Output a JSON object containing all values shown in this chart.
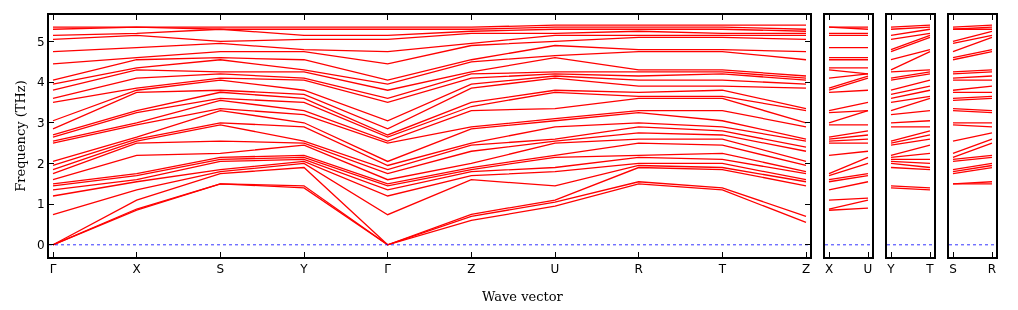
{
  "chart_data": [
    {
      "type": "line",
      "ylabel": "Frequency (THz)",
      "xlabel": "Wave vector",
      "color": "#ff0000",
      "marker": "none",
      "line_style": "solid",
      "categories": [
        "Γ",
        "X",
        "S",
        "Y",
        "Γ",
        "Z",
        "U",
        "R",
        "T",
        "Z"
      ],
      "ylim": [
        -0.3,
        5.65
      ],
      "yticks": [
        0,
        1,
        2,
        3,
        4,
        5
      ],
      "ref_lines": [
        {
          "axis": "y",
          "value": 0,
          "color": "#0000ff",
          "line_style": "dotted"
        }
      ],
      "series": [
        {
          "values": [
            0,
            0.85,
            1.5,
            1.4,
            0,
            0.6,
            0.95,
            1.5,
            1.35,
            0.55
          ]
        },
        {
          "values": [
            0,
            0.88,
            1.5,
            1.45,
            0,
            0.7,
            1.05,
            1.55,
            1.4,
            0.7
          ]
        },
        {
          "values": [
            0,
            1.1,
            1.75,
            1.9,
            0,
            0.75,
            1.1,
            1.9,
            1.85,
            1.45
          ]
        },
        {
          "values": [
            0.74,
            1.35,
            1.8,
            2.0,
            0.74,
            1.6,
            1.45,
            1.95,
            1.9,
            1.55
          ]
        },
        {
          "values": [
            1.2,
            1.55,
            1.85,
            2.05,
            1.2,
            1.7,
            1.8,
            2.0,
            2.0,
            1.6
          ]
        },
        {
          "values": [
            1.35,
            1.6,
            2.05,
            2.1,
            1.35,
            1.8,
            1.9,
            2.15,
            2.1,
            1.75
          ]
        },
        {
          "values": [
            1.45,
            1.7,
            2.1,
            2.15,
            1.45,
            1.85,
            2.15,
            2.2,
            2.25,
            1.8
          ]
        },
        {
          "values": [
            1.5,
            1.75,
            2.15,
            2.2,
            1.5,
            1.9,
            2.2,
            2.5,
            2.45,
            1.95
          ]
        },
        {
          "values": [
            1.6,
            2.2,
            2.25,
            2.45,
            1.6,
            2.0,
            2.5,
            2.6,
            2.6,
            2.05
          ]
        },
        {
          "values": [
            1.75,
            2.5,
            2.55,
            2.5,
            1.75,
            2.3,
            2.55,
            2.75,
            2.7,
            2.3
          ]
        },
        {
          "values": [
            1.85,
            2.55,
            2.95,
            2.55,
            1.85,
            2.45,
            2.6,
            2.9,
            2.8,
            2.4
          ]
        },
        {
          "values": [
            1.95,
            2.6,
            3.0,
            2.9,
            1.95,
            2.5,
            2.9,
            3.0,
            2.9,
            2.55
          ]
        },
        {
          "values": [
            2.05,
            2.65,
            3.3,
            3.0,
            2.05,
            2.85,
            3.05,
            3.25,
            3.05,
            2.6
          ]
        },
        {
          "values": [
            2.5,
            2.95,
            3.35,
            3.2,
            2.5,
            2.9,
            3.1,
            3.3,
            3.3,
            2.9
          ]
        },
        {
          "values": [
            2.55,
            3.0,
            3.55,
            3.3,
            2.55,
            3.3,
            3.35,
            3.6,
            3.6,
            3.0
          ]
        },
        {
          "values": [
            2.65,
            3.25,
            3.6,
            3.5,
            2.65,
            3.4,
            3.75,
            3.65,
            3.65,
            3.3
          ]
        },
        {
          "values": [
            2.7,
            3.3,
            3.75,
            3.6,
            2.7,
            3.5,
            3.8,
            3.75,
            3.8,
            3.35
          ]
        },
        {
          "values": [
            2.85,
            3.75,
            3.8,
            3.7,
            2.85,
            3.85,
            4.1,
            3.9,
            3.9,
            3.85
          ]
        },
        {
          "values": [
            3.05,
            3.8,
            4.05,
            3.8,
            3.05,
            3.95,
            4.15,
            4.05,
            4.05,
            3.95
          ]
        },
        {
          "values": [
            3.5,
            3.85,
            4.1,
            4.05,
            3.5,
            4.1,
            4.2,
            4.15,
            4.2,
            4.05
          ]
        },
        {
          "values": [
            3.6,
            4.1,
            4.2,
            4.1,
            3.6,
            4.2,
            4.25,
            4.25,
            4.25,
            4.1
          ]
        },
        {
          "values": [
            3.8,
            4.3,
            4.25,
            4.25,
            3.8,
            4.25,
            4.6,
            4.3,
            4.3,
            4.15
          ]
        },
        {
          "values": [
            3.95,
            4.35,
            4.55,
            4.3,
            3.95,
            4.5,
            4.65,
            4.75,
            4.75,
            4.55
          ]
        },
        {
          "values": [
            4.05,
            4.55,
            4.6,
            4.55,
            4.05,
            4.55,
            4.9,
            4.8,
            4.8,
            4.75
          ]
        },
        {
          "values": [
            4.45,
            4.6,
            4.75,
            4.75,
            4.45,
            4.9,
            5.0,
            5.1,
            5.1,
            5.05
          ]
        },
        {
          "values": [
            4.75,
            4.85,
            4.95,
            4.8,
            4.75,
            4.95,
            5.15,
            5.15,
            5.15,
            5.15
          ]
        },
        {
          "values": [
            5.05,
            5.15,
            5.0,
            5.05,
            5.05,
            5.2,
            5.2,
            5.25,
            5.2,
            5.2
          ]
        },
        {
          "values": [
            5.15,
            5.2,
            5.3,
            5.15,
            5.15,
            5.25,
            5.3,
            5.3,
            5.3,
            5.25
          ]
        },
        {
          "values": [
            5.3,
            5.35,
            5.3,
            5.3,
            5.3,
            5.3,
            5.35,
            5.35,
            5.35,
            5.3
          ]
        },
        {
          "values": [
            5.35,
            5.35,
            5.35,
            5.35,
            5.35,
            5.35,
            5.4,
            5.4,
            5.4,
            5.4
          ]
        }
      ]
    },
    {
      "type": "line",
      "color": "#ff0000",
      "marker": "none",
      "line_style": "solid",
      "tick_labels": "x",
      "categories": [
        "X",
        "U"
      ],
      "ylim": [
        -0.3,
        5.65
      ],
      "ref_lines": [
        {
          "axis": "y",
          "value": 0,
          "color": "#0000ff",
          "line_style": "dotted"
        }
      ],
      "series": [
        {
          "values": [
            0.85,
            0.9
          ]
        },
        {
          "values": [
            0.88,
            1.1
          ]
        },
        {
          "values": [
            1.1,
            1.15
          ]
        },
        {
          "values": [
            1.35,
            1.55
          ]
        },
        {
          "values": [
            1.55,
            1.7
          ]
        },
        {
          "values": [
            1.6,
            1.75
          ]
        },
        {
          "values": [
            1.7,
            2.0
          ]
        },
        {
          "values": [
            1.75,
            2.15
          ]
        },
        {
          "values": [
            2.2,
            2.3
          ]
        },
        {
          "values": [
            2.5,
            2.5
          ]
        },
        {
          "values": [
            2.55,
            2.6
          ]
        },
        {
          "values": [
            2.6,
            2.7
          ]
        },
        {
          "values": [
            2.65,
            2.8
          ]
        },
        {
          "values": [
            2.95,
            2.95
          ]
        },
        {
          "values": [
            3.0,
            3.3
          ]
        },
        {
          "values": [
            3.25,
            3.3
          ]
        },
        {
          "values": [
            3.3,
            3.5
          ]
        },
        {
          "values": [
            3.75,
            3.8
          ]
        },
        {
          "values": [
            3.8,
            4.1
          ]
        },
        {
          "values": [
            3.85,
            4.15
          ]
        },
        {
          "values": [
            4.1,
            4.2
          ]
        },
        {
          "values": [
            4.3,
            4.2
          ]
        },
        {
          "values": [
            4.35,
            4.35
          ]
        },
        {
          "values": [
            4.55,
            4.55
          ]
        },
        {
          "values": [
            4.6,
            4.6
          ]
        },
        {
          "values": [
            4.85,
            4.85
          ]
        },
        {
          "values": [
            5.15,
            5.15
          ]
        },
        {
          "values": [
            5.2,
            5.2
          ]
        },
        {
          "values": [
            5.35,
            5.3
          ]
        },
        {
          "values": [
            5.35,
            5.35
          ]
        }
      ]
    },
    {
      "type": "line",
      "color": "#ff0000",
      "marker": "none",
      "line_style": "solid",
      "tick_labels": "x",
      "categories": [
        "Y",
        "T"
      ],
      "ylim": [
        -0.3,
        5.65
      ],
      "ref_lines": [
        {
          "axis": "y",
          "value": 0,
          "color": "#0000ff",
          "line_style": "dotted"
        }
      ],
      "series": [
        {
          "values": [
            1.4,
            1.35
          ]
        },
        {
          "values": [
            1.45,
            1.4
          ]
        },
        {
          "values": [
            1.9,
            1.85
          ]
        },
        {
          "values": [
            2.0,
            1.9
          ]
        },
        {
          "values": [
            2.05,
            2.0
          ]
        },
        {
          "values": [
            2.1,
            2.1
          ]
        },
        {
          "values": [
            2.15,
            2.25
          ]
        },
        {
          "values": [
            2.2,
            2.45
          ]
        },
        {
          "values": [
            2.45,
            2.6
          ]
        },
        {
          "values": [
            2.5,
            2.7
          ]
        },
        {
          "values": [
            2.55,
            2.8
          ]
        },
        {
          "values": [
            2.9,
            2.9
          ]
        },
        {
          "values": [
            3.0,
            3.05
          ]
        },
        {
          "values": [
            3.2,
            3.3
          ]
        },
        {
          "values": [
            3.3,
            3.6
          ]
        },
        {
          "values": [
            3.5,
            3.65
          ]
        },
        {
          "values": [
            3.6,
            3.8
          ]
        },
        {
          "values": [
            3.7,
            3.9
          ]
        },
        {
          "values": [
            3.8,
            4.05
          ]
        },
        {
          "values": [
            4.05,
            4.2
          ]
        },
        {
          "values": [
            4.1,
            4.25
          ]
        },
        {
          "values": [
            4.25,
            4.3
          ]
        },
        {
          "values": [
            4.3,
            4.75
          ]
        },
        {
          "values": [
            4.55,
            4.8
          ]
        },
        {
          "values": [
            4.75,
            5.1
          ]
        },
        {
          "values": [
            4.8,
            5.15
          ]
        },
        {
          "values": [
            5.05,
            5.2
          ]
        },
        {
          "values": [
            5.15,
            5.3
          ]
        },
        {
          "values": [
            5.3,
            5.35
          ]
        },
        {
          "values": [
            5.35,
            5.4
          ]
        }
      ]
    },
    {
      "type": "line",
      "color": "#ff0000",
      "marker": "none",
      "line_style": "solid",
      "tick_labels": "x",
      "categories": [
        "S",
        "R"
      ],
      "ylim": [
        -0.3,
        5.65
      ],
      "ref_lines": [
        {
          "axis": "y",
          "value": 0,
          "color": "#0000ff",
          "line_style": "dotted"
        }
      ],
      "series": [
        {
          "values": [
            1.5,
            1.5
          ]
        },
        {
          "values": [
            1.5,
            1.55
          ]
        },
        {
          "values": [
            1.75,
            1.9
          ]
        },
        {
          "values": [
            1.8,
            1.95
          ]
        },
        {
          "values": [
            1.85,
            2.0
          ]
        },
        {
          "values": [
            2.05,
            2.15
          ]
        },
        {
          "values": [
            2.1,
            2.2
          ]
        },
        {
          "values": [
            2.15,
            2.5
          ]
        },
        {
          "values": [
            2.25,
            2.6
          ]
        },
        {
          "values": [
            2.55,
            2.75
          ]
        },
        {
          "values": [
            2.95,
            2.9
          ]
        },
        {
          "values": [
            3.0,
            3.0
          ]
        },
        {
          "values": [
            3.3,
            3.25
          ]
        },
        {
          "values": [
            3.35,
            3.3
          ]
        },
        {
          "values": [
            3.55,
            3.6
          ]
        },
        {
          "values": [
            3.6,
            3.65
          ]
        },
        {
          "values": [
            3.75,
            3.75
          ]
        },
        {
          "values": [
            3.8,
            3.9
          ]
        },
        {
          "values": [
            4.05,
            4.05
          ]
        },
        {
          "values": [
            4.1,
            4.15
          ]
        },
        {
          "values": [
            4.2,
            4.25
          ]
        },
        {
          "values": [
            4.25,
            4.3
          ]
        },
        {
          "values": [
            4.55,
            4.75
          ]
        },
        {
          "values": [
            4.6,
            4.8
          ]
        },
        {
          "values": [
            4.75,
            5.1
          ]
        },
        {
          "values": [
            4.95,
            5.15
          ]
        },
        {
          "values": [
            5.0,
            5.25
          ]
        },
        {
          "values": [
            5.3,
            5.3
          ]
        },
        {
          "values": [
            5.3,
            5.35
          ]
        },
        {
          "values": [
            5.35,
            5.4
          ]
        }
      ]
    }
  ]
}
